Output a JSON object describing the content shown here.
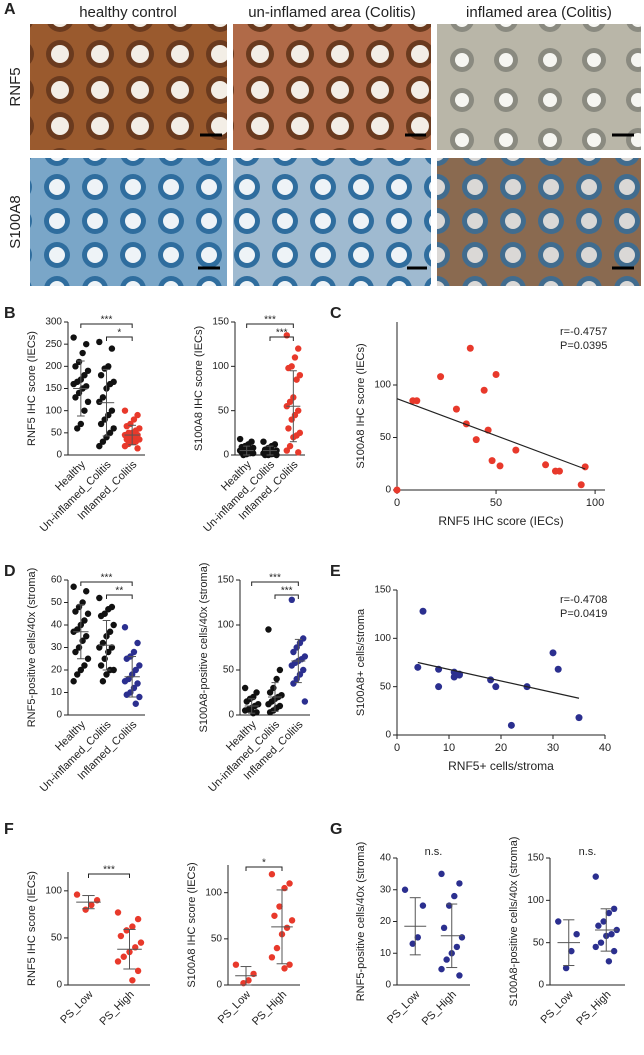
{
  "panel_labels": [
    "A",
    "B",
    "C",
    "D",
    "E",
    "F",
    "G"
  ],
  "micrographs": {
    "columns": [
      "healthy control",
      "un-inflamed area (Colitis)",
      "inflamed area (Colitis)"
    ],
    "rows": [
      "RNF5",
      "S100A8"
    ]
  },
  "chart_data": [
    {
      "type": "dotplot",
      "ylabel": "RNF5 IHC score (IECs)",
      "categories": [
        "Healthy",
        "Un-inflamed_Colitis",
        "Inflamed_Colitis"
      ],
      "ylim": [
        0,
        300
      ],
      "yticks": [
        0,
        50,
        100,
        150,
        200,
        250,
        300
      ],
      "groups": [
        {
          "color": "#111111",
          "values": [
            265,
            250,
            230,
            210,
            200,
            190,
            180,
            170,
            165,
            160,
            155,
            150,
            140,
            130,
            120,
            100,
            70,
            60
          ],
          "mean": 150,
          "sd": 62
        },
        {
          "color": "#111111",
          "values": [
            255,
            240,
            200,
            195,
            180,
            165,
            160,
            150,
            130,
            120,
            100,
            90,
            80,
            70,
            60,
            50,
            40,
            30,
            20
          ],
          "mean": 118,
          "sd": 75
        },
        {
          "color": "#e8392b",
          "values": [
            100,
            90,
            80,
            70,
            65,
            60,
            55,
            50,
            50,
            45,
            45,
            40,
            40,
            35,
            35,
            30,
            30,
            25,
            20,
            15
          ],
          "mean": 45,
          "sd": 22
        }
      ],
      "brackets": [
        {
          "from": 0,
          "to": 2,
          "label": "***"
        },
        {
          "from": 1,
          "to": 2,
          "label": "*"
        }
      ]
    },
    {
      "type": "dotplot",
      "ylabel": "S100A8 IHC score (IECs)",
      "categories": [
        "Healthy",
        "Un-inflamed_Colitis",
        "Inflamed_Colitis"
      ],
      "ylim": [
        0,
        150
      ],
      "yticks": [
        0,
        50,
        100,
        150
      ],
      "groups": [
        {
          "color": "#111111",
          "values": [
            18,
            15,
            12,
            10,
            9,
            8,
            7,
            6,
            5,
            5,
            4,
            4,
            3,
            3,
            2,
            2,
            1,
            0
          ],
          "mean": 5,
          "sd": 5
        },
        {
          "color": "#111111",
          "values": [
            15,
            12,
            10,
            8,
            6,
            5,
            4,
            3,
            2,
            2,
            1,
            1,
            0,
            0,
            0
          ],
          "mean": 5,
          "sd": 5
        },
        {
          "color": "#e8392b",
          "values": [
            135,
            120,
            110,
            100,
            98,
            90,
            85,
            65,
            60,
            55,
            50,
            45,
            40,
            30,
            25,
            22,
            20,
            10,
            5,
            3
          ],
          "mean": 55,
          "sd": 40
        }
      ],
      "brackets": [
        {
          "from": 0,
          "to": 2,
          "label": "***"
        },
        {
          "from": 1,
          "to": 2,
          "label": "***"
        }
      ]
    },
    {
      "type": "scatter",
      "xlabel": "RNF5 IHC score (IECs)",
      "ylabel": "S100A8 IHC score (IECs)",
      "color": "#e8392b",
      "xlim": [
        0,
        105
      ],
      "ylim": [
        0,
        160
      ],
      "xticks": [
        0,
        50,
        100
      ],
      "yticks": [
        0,
        50,
        100
      ],
      "x": [
        0,
        8,
        10,
        22,
        30,
        35,
        37,
        40,
        44,
        46,
        48,
        50,
        52,
        60,
        75,
        80,
        82,
        93,
        95
      ],
      "y": [
        0,
        85,
        85,
        108,
        77,
        63,
        135,
        48,
        95,
        57,
        28,
        110,
        23,
        38,
        24,
        18,
        18,
        5,
        22
      ],
      "fit": {
        "x": [
          0,
          95
        ],
        "y": [
          87,
          20
        ]
      },
      "annotations": [
        "r=-0.4757",
        "P=0.0395"
      ]
    },
    {
      "type": "dotplot",
      "ylabel": "RNF5-positive cells/40x (stroma)",
      "categories": [
        "Healthy",
        "Un-inflamed_Colitis",
        "Inflamed_Colitis"
      ],
      "ylim": [
        0,
        60
      ],
      "yticks": [
        0,
        10,
        20,
        30,
        40,
        50,
        60
      ],
      "groups": [
        {
          "color": "#111111",
          "values": [
            57,
            55,
            50,
            48,
            46,
            45,
            42,
            40,
            38,
            37,
            35,
            33,
            30,
            28,
            25,
            22,
            20,
            18,
            15
          ],
          "mean": 37,
          "sd": 12
        },
        {
          "color": "#111111",
          "values": [
            52,
            48,
            47,
            45,
            44,
            40,
            37,
            35,
            32,
            30,
            30,
            28,
            25,
            22,
            20,
            20,
            18,
            15
          ],
          "mean": 31,
          "sd": 11
        },
        {
          "color": "#2b2f8f",
          "values": [
            39,
            32,
            28,
            26,
            25,
            22,
            20,
            18,
            16,
            15,
            14,
            12,
            10,
            9,
            8,
            5
          ],
          "mean": 17,
          "sd": 9
        }
      ],
      "brackets": [
        {
          "from": 0,
          "to": 2,
          "label": "***"
        },
        {
          "from": 1,
          "to": 2,
          "label": "**"
        }
      ]
    },
    {
      "type": "dotplot",
      "ylabel": "S100A8-positive cells/40x (stroma)",
      "categories": [
        "Healthy",
        "Un-inflamed_Colitis",
        "Inflamed_Colitis"
      ],
      "ylim": [
        0,
        150
      ],
      "yticks": [
        0,
        50,
        100,
        150
      ],
      "groups": [
        {
          "color": "#111111",
          "values": [
            30,
            25,
            20,
            18,
            15,
            12,
            10,
            8,
            6,
            5,
            3,
            2
          ],
          "mean": 10,
          "sd": 8
        },
        {
          "color": "#111111",
          "values": [
            95,
            50,
            40,
            30,
            25,
            22,
            20,
            18,
            15,
            12,
            10,
            8,
            5,
            3
          ],
          "mean": 20,
          "sd": 16
        },
        {
          "color": "#2b2f8f",
          "values": [
            128,
            85,
            80,
            75,
            70,
            65,
            62,
            60,
            58,
            55,
            50,
            45,
            40,
            35,
            15
          ],
          "mean": 60,
          "sd": 24
        }
      ],
      "brackets": [
        {
          "from": 0,
          "to": 2,
          "label": "***"
        },
        {
          "from": 1,
          "to": 2,
          "label": "***"
        }
      ]
    },
    {
      "type": "scatter",
      "xlabel": "RNF5+ cells/stroma",
      "ylabel": "S100A8+ cells/stroma",
      "color": "#2b2f8f",
      "xlim": [
        0,
        40
      ],
      "ylim": [
        0,
        150
      ],
      "xticks": [
        0,
        10,
        20,
        30,
        40
      ],
      "yticks": [
        0,
        50,
        100,
        150
      ],
      "x": [
        4,
        5,
        8,
        8,
        11,
        11,
        12,
        12,
        18,
        19,
        22,
        25,
        30,
        31,
        35
      ],
      "y": [
        70,
        128,
        68,
        50,
        65,
        60,
        63,
        62,
        57,
        50,
        10,
        50,
        85,
        68,
        18
      ],
      "fit": {
        "x": [
          4,
          35
        ],
        "y": [
          75,
          38
        ]
      },
      "annotations": [
        "r=-0.4708",
        "P=0.0419"
      ]
    },
    {
      "type": "dotplot",
      "ylabel": "RNF5 IHC score (IECs)",
      "categories": [
        "PS_Low",
        "PS_High"
      ],
      "ylim": [
        0,
        120
      ],
      "yticks": [
        0,
        50,
        100
      ],
      "groups": [
        {
          "color": "#e8392b",
          "values": [
            96,
            90,
            85,
            80
          ],
          "mean": 88,
          "sd": 7
        },
        {
          "color": "#e8392b",
          "values": [
            77,
            70,
            62,
            58,
            52,
            45,
            40,
            35,
            30,
            25,
            15,
            5
          ],
          "mean": 38,
          "sd": 21
        }
      ],
      "brackets": [
        {
          "from": 0,
          "to": 1,
          "label": "***"
        }
      ]
    },
    {
      "type": "dotplot",
      "ylabel": "S100A8 IHC score (IECs)",
      "categories": [
        "PS_Low",
        "PS_High"
      ],
      "ylim": [
        0,
        130
      ],
      "yticks": [
        0,
        50,
        100
      ],
      "groups": [
        {
          "color": "#e8392b",
          "values": [
            22,
            12,
            5,
            2
          ],
          "mean": 10,
          "sd": 10
        },
        {
          "color": "#e8392b",
          "values": [
            120,
            110,
            105,
            85,
            75,
            70,
            62,
            55,
            40,
            30,
            22,
            18
          ],
          "mean": 63,
          "sd": 40
        }
      ],
      "brackets": [
        {
          "from": 0,
          "to": 1,
          "label": "*"
        }
      ]
    },
    {
      "type": "dotplot",
      "ylabel": "RNF5-positive cells/40x (stroma)",
      "categories": [
        "PS_Low",
        "PS_High"
      ],
      "ylim": [
        0,
        40
      ],
      "yticks": [
        0,
        10,
        20,
        30,
        40
      ],
      "groups": [
        {
          "color": "#2b2f8f",
          "values": [
            30,
            25,
            15,
            13
          ],
          "mean": 18.5,
          "sd": 9
        },
        {
          "color": "#2b2f8f",
          "values": [
            35,
            32,
            28,
            25,
            18,
            15,
            12,
            10,
            8,
            5,
            3
          ],
          "mean": 15.5,
          "sd": 10
        }
      ],
      "annotation": "n.s."
    },
    {
      "type": "dotplot",
      "ylabel": "S100A8-positive cells/40x (stroma)",
      "categories": [
        "PS_Low",
        "PS_High"
      ],
      "ylim": [
        0,
        150
      ],
      "yticks": [
        0,
        50,
        100,
        150
      ],
      "groups": [
        {
          "color": "#2b2f8f",
          "values": [
            75,
            60,
            40,
            20
          ],
          "mean": 50,
          "sd": 27
        },
        {
          "color": "#2b2f8f",
          "values": [
            128,
            90,
            85,
            75,
            70,
            65,
            60,
            58,
            50,
            45,
            40,
            28
          ],
          "mean": 65,
          "sd": 25
        }
      ],
      "annotation": "n.s."
    }
  ]
}
